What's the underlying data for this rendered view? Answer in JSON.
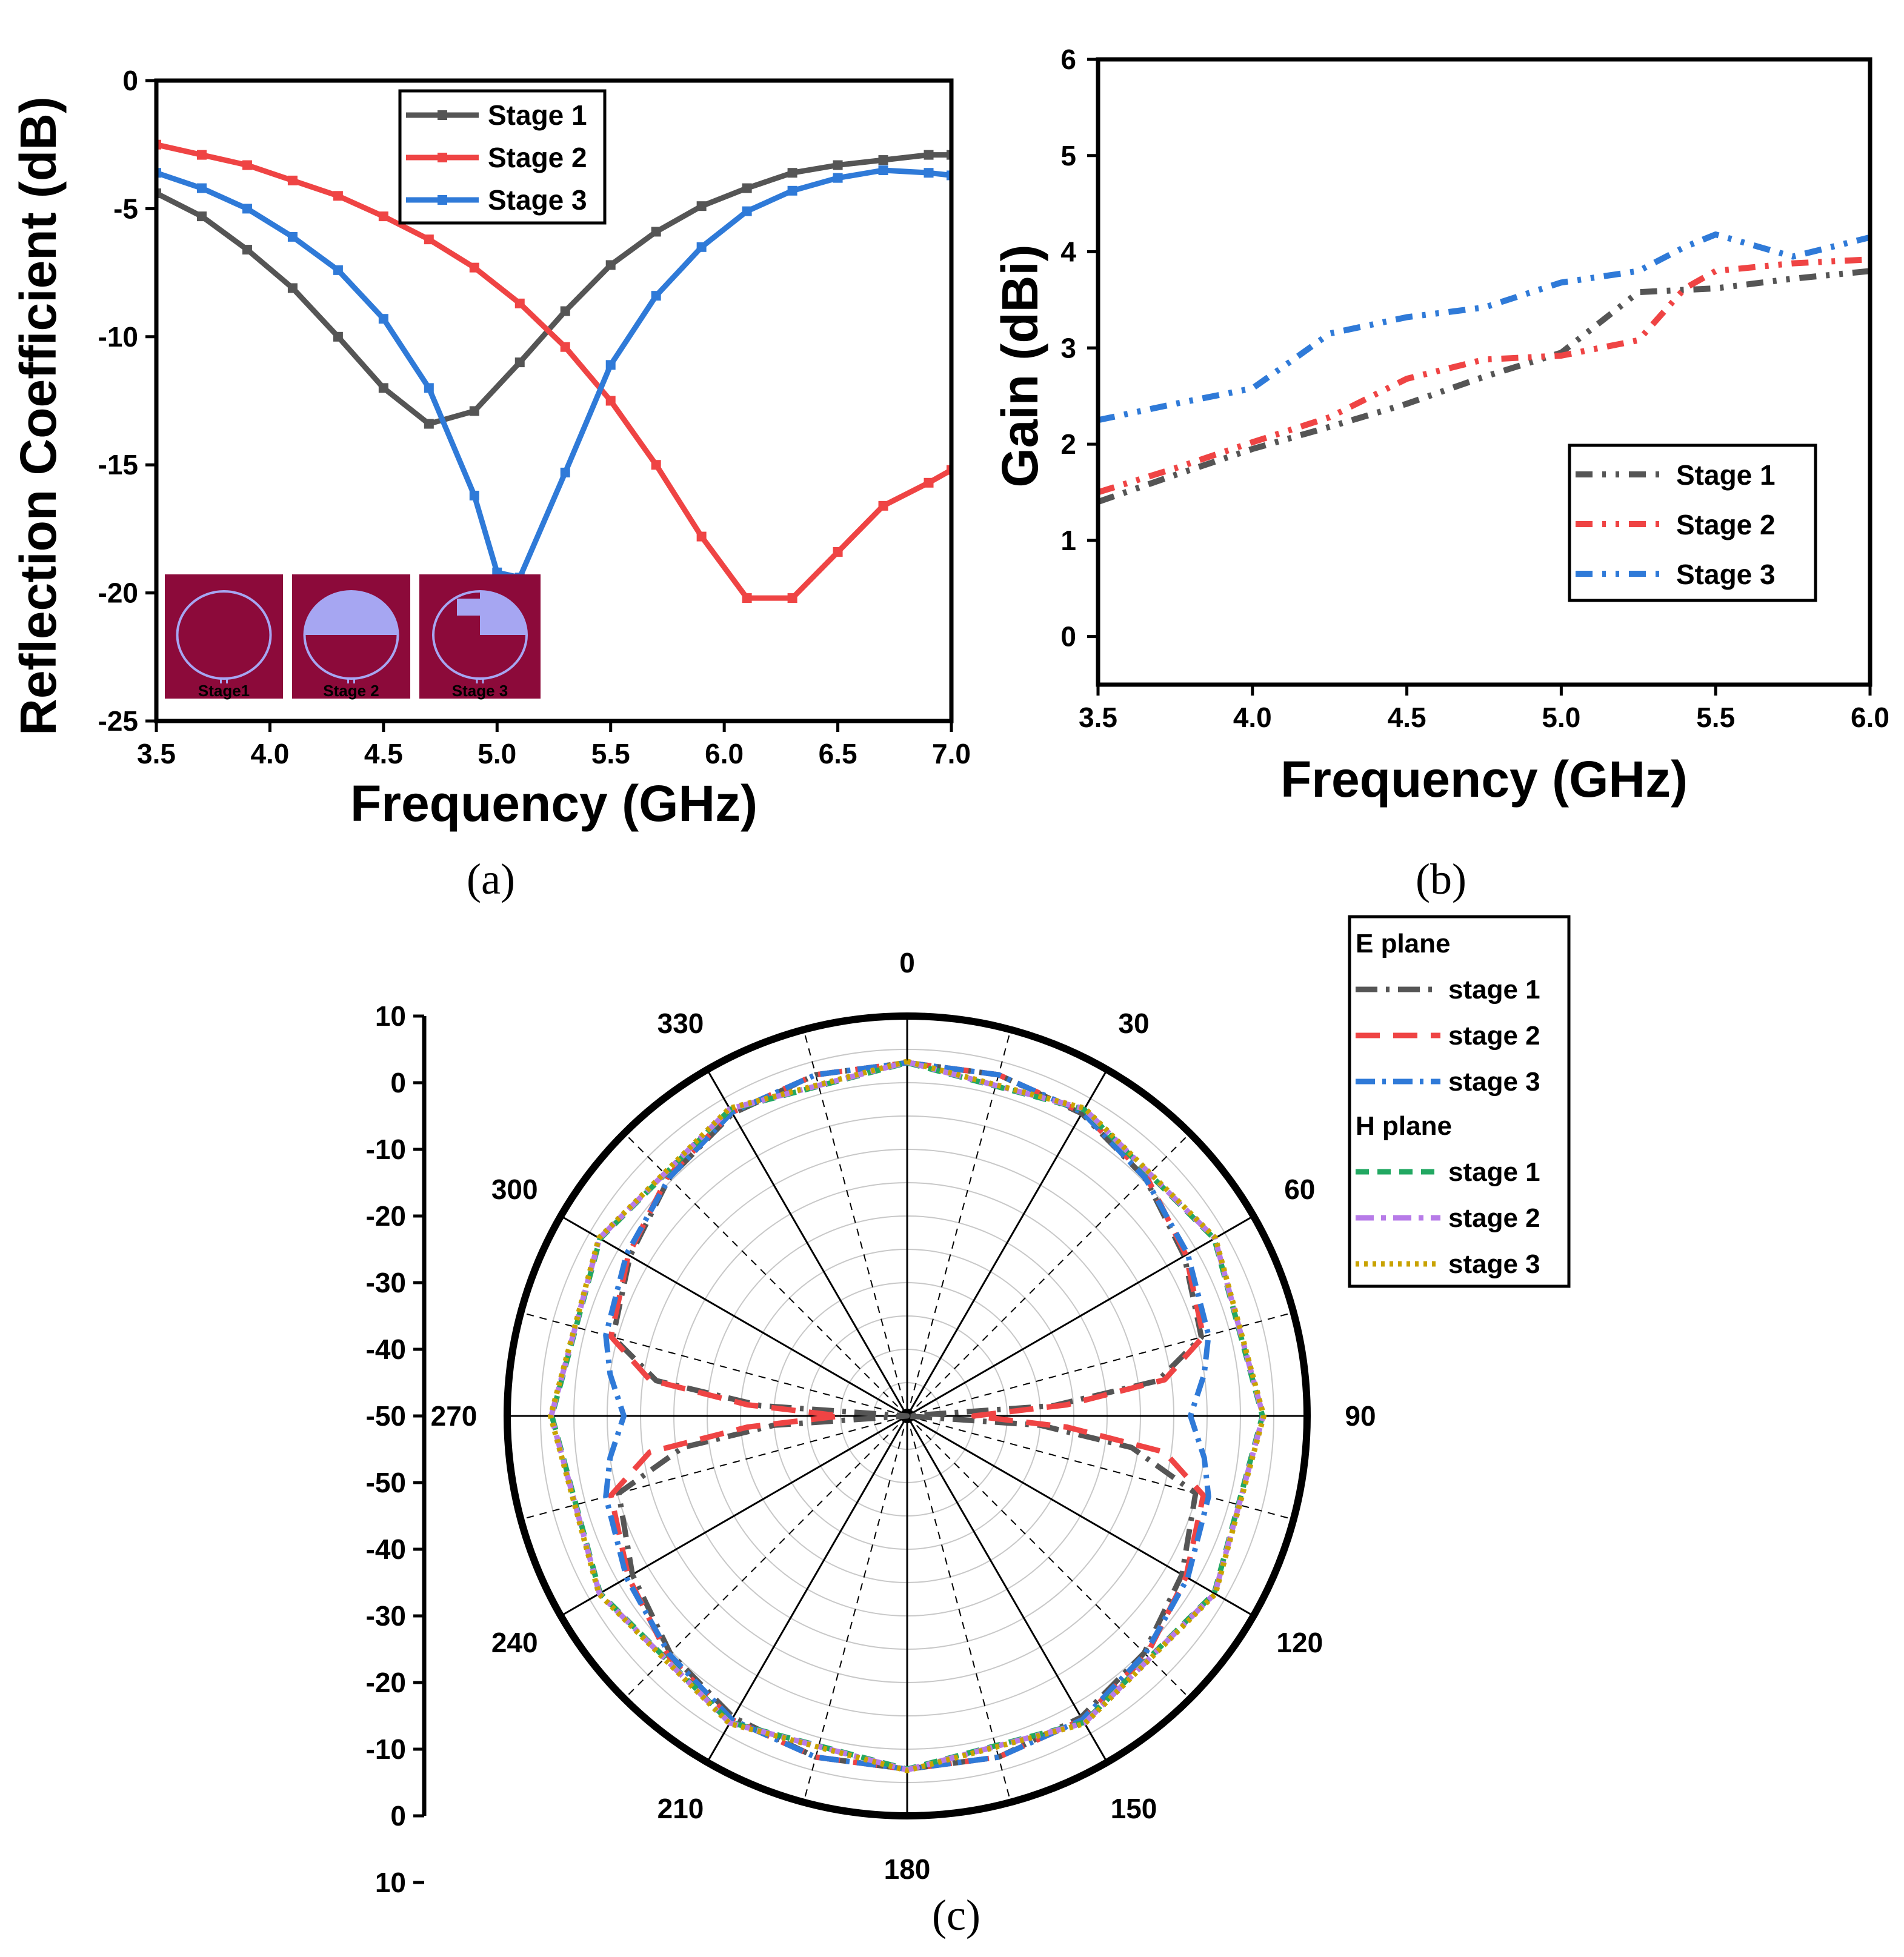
{
  "colors": {
    "stage1": "#555555",
    "stage2": "#ef4444",
    "stage3": "#2f7ad8",
    "h1": "#22a862",
    "h2": "#b77be8",
    "h3": "#c9a300",
    "inset_bg": "#8c0a3a",
    "inset_patch": "#a6a6f2"
  },
  "chart_data": [
    {
      "id": "a",
      "type": "line",
      "caption": "(a)",
      "xlabel": "Frequency (GHz)",
      "ylabel": "Reflection Coefficient (dB)",
      "xlim": [
        3.5,
        7.0
      ],
      "ylim": [
        -25,
        0
      ],
      "xticks": [
        3.5,
        4.0,
        4.5,
        5.0,
        5.5,
        6.0,
        6.5,
        7.0
      ],
      "xtick_labels": [
        "3.5",
        "4.0",
        "4.5",
        "5.0",
        "5.5",
        "6.0",
        "6.5",
        "7.0"
      ],
      "yticks": [
        0,
        -5,
        -10,
        -15,
        -20,
        -25
      ],
      "ytick_labels": [
        "0",
        "-5",
        "-10",
        "-15",
        "-20",
        "-25"
      ],
      "legend_position": "top-center",
      "series": [
        {
          "name": "Stage 1",
          "x": [
            3.5,
            3.7,
            3.9,
            4.1,
            4.3,
            4.5,
            4.7,
            4.9,
            5.1,
            5.3,
            5.5,
            5.7,
            5.9,
            6.1,
            6.3,
            6.5,
            6.7,
            6.9,
            7.0
          ],
          "y": [
            -4.4,
            -5.3,
            -6.6,
            -8.1,
            -10.0,
            -12.0,
            -13.4,
            -12.9,
            -11.0,
            -9.0,
            -7.2,
            -5.9,
            -4.9,
            -4.2,
            -3.6,
            -3.3,
            -3.1,
            -2.9,
            -2.9
          ]
        },
        {
          "name": "Stage 2",
          "x": [
            3.5,
            3.7,
            3.9,
            4.1,
            4.3,
            4.5,
            4.7,
            4.9,
            5.1,
            5.3,
            5.5,
            5.7,
            5.9,
            6.1,
            6.3,
            6.5,
            6.7,
            6.9,
            7.0
          ],
          "y": [
            -2.5,
            -2.9,
            -3.3,
            -3.9,
            -4.5,
            -5.3,
            -6.2,
            -7.3,
            -8.7,
            -10.4,
            -12.5,
            -15.0,
            -17.8,
            -20.2,
            -20.2,
            -18.4,
            -16.6,
            -15.7,
            -15.2
          ]
        },
        {
          "name": "Stage 3",
          "x": [
            3.5,
            3.7,
            3.9,
            4.1,
            4.3,
            4.5,
            4.7,
            4.9,
            5.0,
            5.1,
            5.3,
            5.5,
            5.7,
            5.9,
            6.1,
            6.3,
            6.5,
            6.7,
            6.9,
            7.0
          ],
          "y": [
            -3.6,
            -4.2,
            -5.0,
            -6.1,
            -7.4,
            -9.3,
            -12.0,
            -16.2,
            -19.2,
            -19.4,
            -15.3,
            -11.1,
            -8.4,
            -6.5,
            -5.1,
            -4.3,
            -3.8,
            -3.5,
            -3.6,
            -3.7
          ]
        }
      ],
      "inset": {
        "labels": [
          "Stage1",
          "Stage 2",
          "Stage 3"
        ]
      }
    },
    {
      "id": "b",
      "type": "line",
      "caption": "(b)",
      "xlabel": "Frequency (GHz)",
      "ylabel": "Gain (dBi)",
      "xlim": [
        3.5,
        6.0
      ],
      "ylim": [
        -0.5,
        6
      ],
      "xticks": [
        3.5,
        4.0,
        4.5,
        5.0,
        5.5,
        6.0
      ],
      "xtick_labels": [
        "3.5",
        "4.0",
        "4.5",
        "5.0",
        "5.5",
        "6.0"
      ],
      "yticks": [
        0,
        1,
        2,
        3,
        4,
        5,
        6
      ],
      "ytick_labels": [
        "0",
        "1",
        "2",
        "3",
        "4",
        "5",
        "6"
      ],
      "legend_position": "bottom-right",
      "series": [
        {
          "name": "Stage 1",
          "x": [
            3.5,
            3.75,
            4.0,
            4.25,
            4.5,
            4.75,
            5.0,
            5.25,
            5.5,
            5.75,
            6.0
          ],
          "y": [
            1.4,
            1.68,
            1.95,
            2.18,
            2.42,
            2.7,
            2.95,
            3.58,
            3.62,
            3.72,
            3.8
          ]
        },
        {
          "name": "Stage 2",
          "x": [
            3.5,
            3.75,
            4.0,
            4.25,
            4.5,
            4.75,
            5.0,
            5.25,
            5.4,
            5.5,
            5.75,
            6.0
          ],
          "y": [
            1.5,
            1.75,
            2.02,
            2.28,
            2.68,
            2.88,
            2.92,
            3.08,
            3.62,
            3.8,
            3.88,
            3.92
          ]
        },
        {
          "name": "Stage 3",
          "x": [
            3.5,
            3.75,
            4.0,
            4.15,
            4.25,
            4.5,
            4.75,
            5.0,
            5.25,
            5.4,
            5.5,
            5.75,
            6.0
          ],
          "y": [
            2.25,
            2.42,
            2.58,
            2.92,
            3.15,
            3.32,
            3.42,
            3.68,
            3.8,
            4.05,
            4.18,
            3.95,
            4.15
          ]
        }
      ]
    },
    {
      "id": "c",
      "type": "polar",
      "caption": "(c)",
      "angle_ticks": [
        0,
        30,
        60,
        90,
        120,
        150,
        180,
        210,
        240,
        270,
        300,
        330
      ],
      "angle_labels": [
        "0",
        "30",
        "60",
        "90",
        "120",
        "150",
        "180",
        "210",
        "240",
        "270",
        "300",
        "330"
      ],
      "radial_range": [
        -50,
        10
      ],
      "radial_labels_top": [
        "10",
        "0",
        "-10",
        "-20",
        "-30",
        "-40",
        "-50"
      ],
      "radial_labels_bottom": [
        "-50",
        "-40",
        "-30",
        "-20",
        "-10",
        "0",
        "10"
      ],
      "legend_groups": [
        "E plane",
        "H plane"
      ],
      "legend_entries": [
        "stage 1",
        "stage 2",
        "stage 3"
      ],
      "series": [
        {
          "name": "E plane stage 1",
          "angles": [
            0,
            15,
            30,
            45,
            60,
            75,
            82,
            86,
            90,
            94,
            98,
            105,
            120,
            135,
            150,
            165,
            180,
            195,
            210,
            225,
            240,
            255,
            262,
            266,
            270,
            274,
            278,
            285,
            300,
            315,
            330,
            345,
            360
          ],
          "r": [
            3,
            3,
            2.4,
            0.5,
            -2,
            -4.3,
            -12,
            -28,
            -50,
            -30,
            -16,
            -5.2,
            -2.4,
            0.3,
            2.2,
            3,
            3,
            3,
            2.2,
            0.3,
            -2.4,
            -5.2,
            -16,
            -30,
            -50,
            -28,
            -12,
            -4.3,
            -2,
            0.5,
            2.4,
            3,
            3
          ]
        },
        {
          "name": "E plane stage 2",
          "angles": [
            0,
            15,
            30,
            45,
            60,
            75,
            82,
            86,
            90,
            94,
            98,
            105,
            120,
            135,
            150,
            165,
            180,
            195,
            210,
            225,
            240,
            255,
            262,
            266,
            270,
            274,
            278,
            285,
            300,
            315,
            330,
            345,
            360
          ],
          "r": [
            3,
            3,
            2.6,
            0.8,
            -1.7,
            -4,
            -11,
            -26,
            -40,
            -26,
            -11,
            -4,
            -1.7,
            0.8,
            2.6,
            3,
            3,
            3,
            2.6,
            0.8,
            -1.7,
            -4,
            -11,
            -26,
            -40,
            -26,
            -11,
            -4,
            -1.7,
            0.8,
            2.6,
            3,
            3
          ]
        },
        {
          "name": "E plane stage 3",
          "angles": [
            0,
            15,
            30,
            45,
            60,
            75,
            82,
            90,
            98,
            105,
            120,
            135,
            150,
            165,
            180,
            195,
            210,
            225,
            240,
            255,
            262,
            270,
            278,
            285,
            300,
            315,
            330,
            345,
            360
          ],
          "r": [
            3,
            3,
            2.6,
            0.5,
            -1.4,
            -3.2,
            -5,
            -7.5,
            -5,
            -3.2,
            -1.4,
            0.5,
            2.6,
            3,
            3,
            3,
            2.6,
            0.5,
            -1.4,
            -3.2,
            -5,
            -7.5,
            -5,
            -3.2,
            -1.4,
            0.5,
            2.6,
            3,
            3
          ]
        },
        {
          "name": "H plane stage 1",
          "angles": [
            0,
            30,
            60,
            90,
            120,
            150,
            180,
            210,
            240,
            270,
            300,
            330,
            360
          ],
          "r": [
            3,
            3.1,
            3.2,
            3.3,
            3.2,
            3.1,
            3,
            3.1,
            3.2,
            3.3,
            3.2,
            3.1,
            3
          ]
        },
        {
          "name": "H plane stage 2",
          "angles": [
            0,
            30,
            60,
            90,
            120,
            150,
            180,
            210,
            240,
            270,
            300,
            330,
            360
          ],
          "r": [
            3.1,
            3.2,
            3.3,
            3.4,
            3.3,
            3.2,
            3.1,
            3.2,
            3.3,
            3.4,
            3.3,
            3.2,
            3.1
          ]
        },
        {
          "name": "H plane stage 3",
          "angles": [
            0,
            30,
            60,
            90,
            120,
            150,
            180,
            210,
            240,
            270,
            300,
            330,
            360
          ],
          "r": [
            3.2,
            3.3,
            3.4,
            3.5,
            3.4,
            3.3,
            3.2,
            3.3,
            3.4,
            3.5,
            3.4,
            3.3,
            3.2
          ]
        }
      ]
    }
  ]
}
